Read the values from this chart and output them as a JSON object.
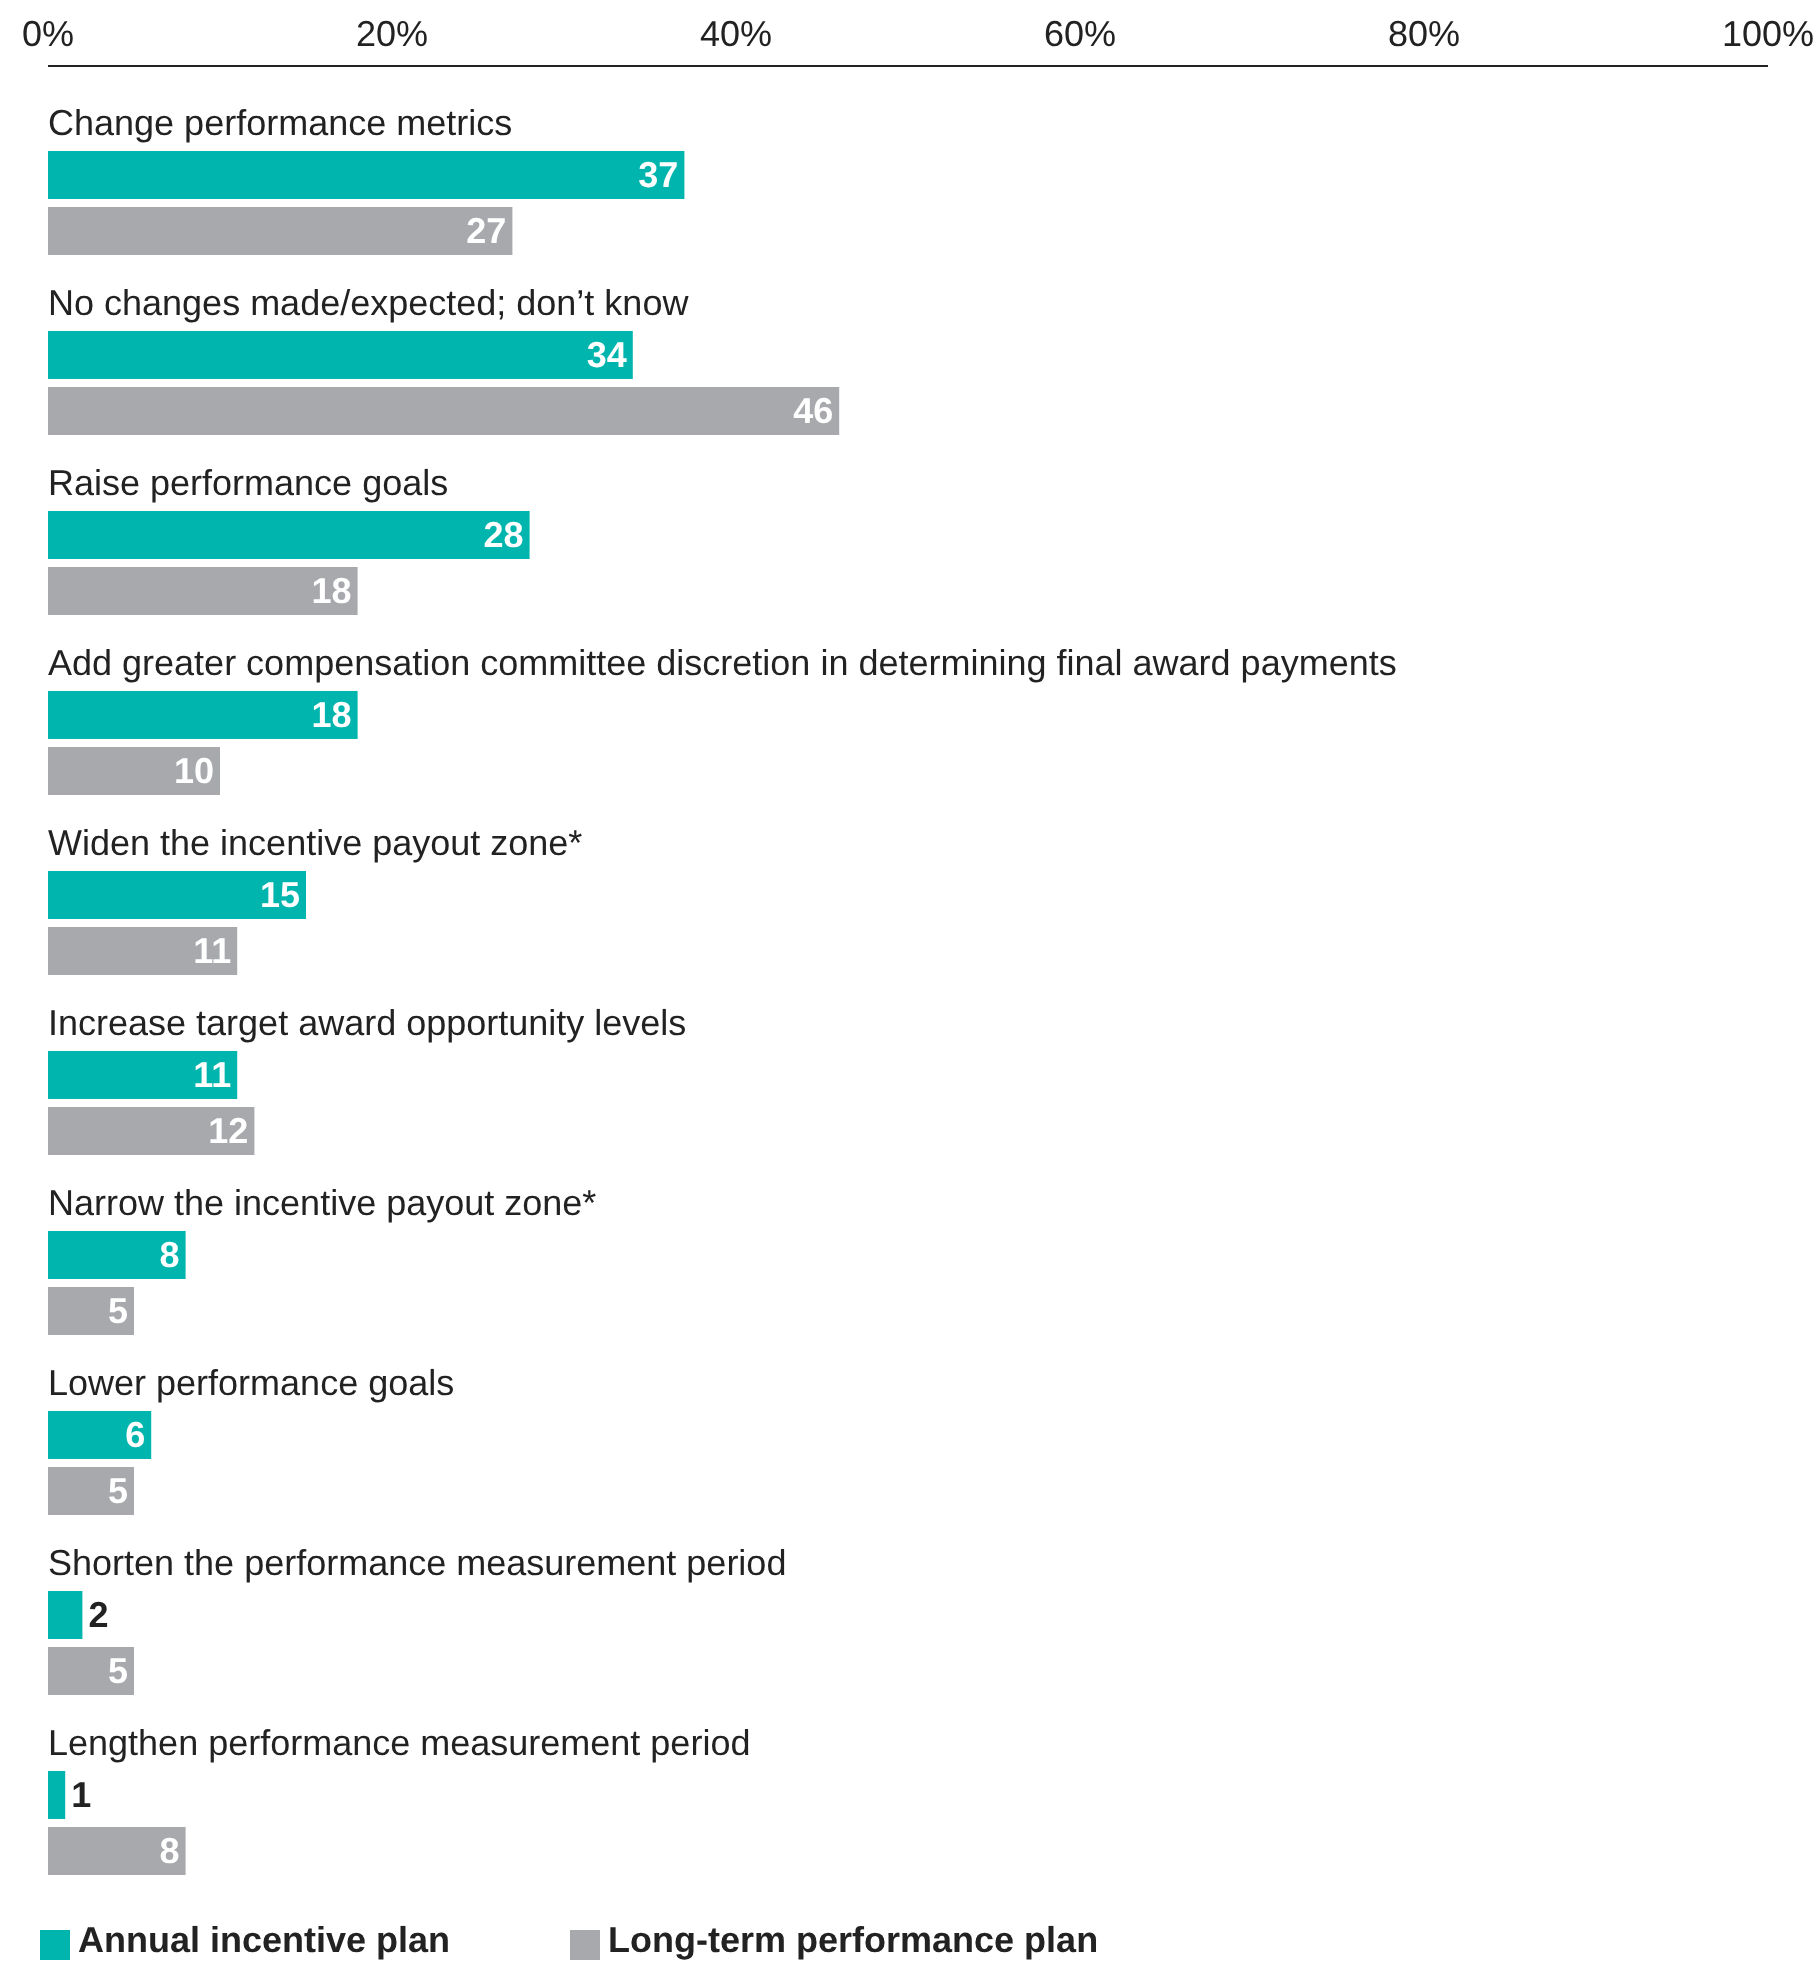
{
  "chart_data": {
    "type": "bar",
    "orientation": "horizontal",
    "categories": [
      "Change performance metrics",
      "No changes made/expected; don’t know",
      "Raise performance goals",
      "Add greater compensation committee discretion in determining final award payments",
      "Widen the incentive payout zone*",
      "Increase target award opportunity levels",
      "Narrow the incentive payout zone*",
      "Lower performance goals",
      "Shorten the performance measurement period",
      "Lengthen performance measurement period"
    ],
    "series": [
      {
        "name": "Annual incentive plan",
        "color": "#00b5ad",
        "values": [
          37,
          34,
          28,
          18,
          15,
          11,
          8,
          6,
          2,
          1
        ]
      },
      {
        "name": "Long-term performance plan",
        "color": "#a7a9ac",
        "values": [
          27,
          46,
          18,
          10,
          11,
          12,
          5,
          5,
          5,
          8
        ]
      }
    ],
    "xlim": [
      0,
      100
    ],
    "xticks": [
      {
        "value": 0,
        "label": "0%"
      },
      {
        "value": 20,
        "label": "20%"
      },
      {
        "value": 40,
        "label": "40%"
      },
      {
        "value": 60,
        "label": "60%"
      },
      {
        "value": 80,
        "label": "80%"
      },
      {
        "value": 100,
        "label": "100%"
      }
    ],
    "data_labels": true,
    "grid": false,
    "legend": "bottom left"
  }
}
